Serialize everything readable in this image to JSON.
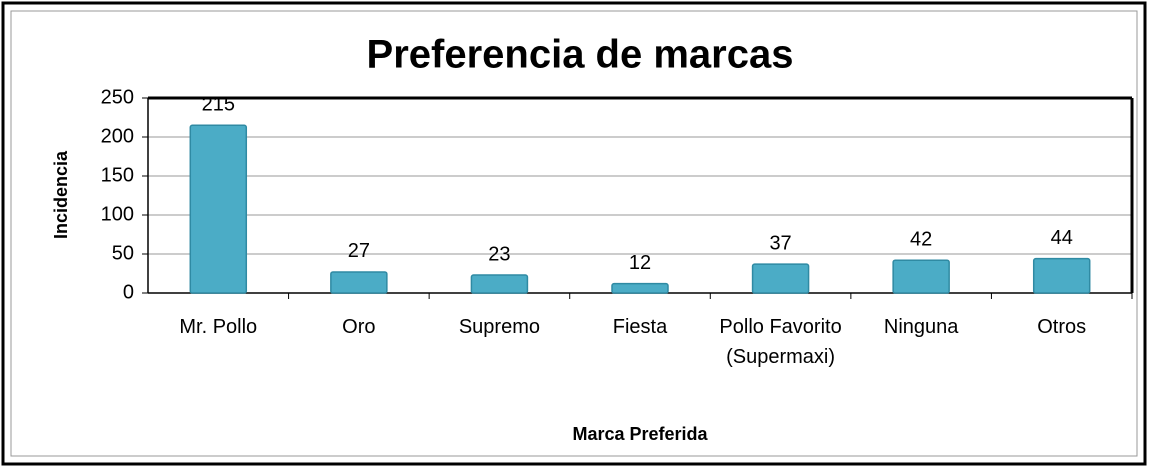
{
  "chart_data": {
    "type": "bar",
    "title": "Preferencia de marcas",
    "x_label": "Marca Preferida",
    "y_label": "Incidencia",
    "categories": [
      "Mr. Pollo",
      "Oro",
      "Supremo",
      "Fiesta",
      "Pollo Favorito (Supermaxi)",
      "Ninguna",
      "Otros"
    ],
    "values": [
      215,
      27,
      23,
      12,
      37,
      42,
      44
    ],
    "color": "#4bacc6",
    "ylim": [
      0,
      250
    ],
    "yticks": [
      0,
      50,
      100,
      150,
      200,
      250
    ],
    "grid": true
  }
}
